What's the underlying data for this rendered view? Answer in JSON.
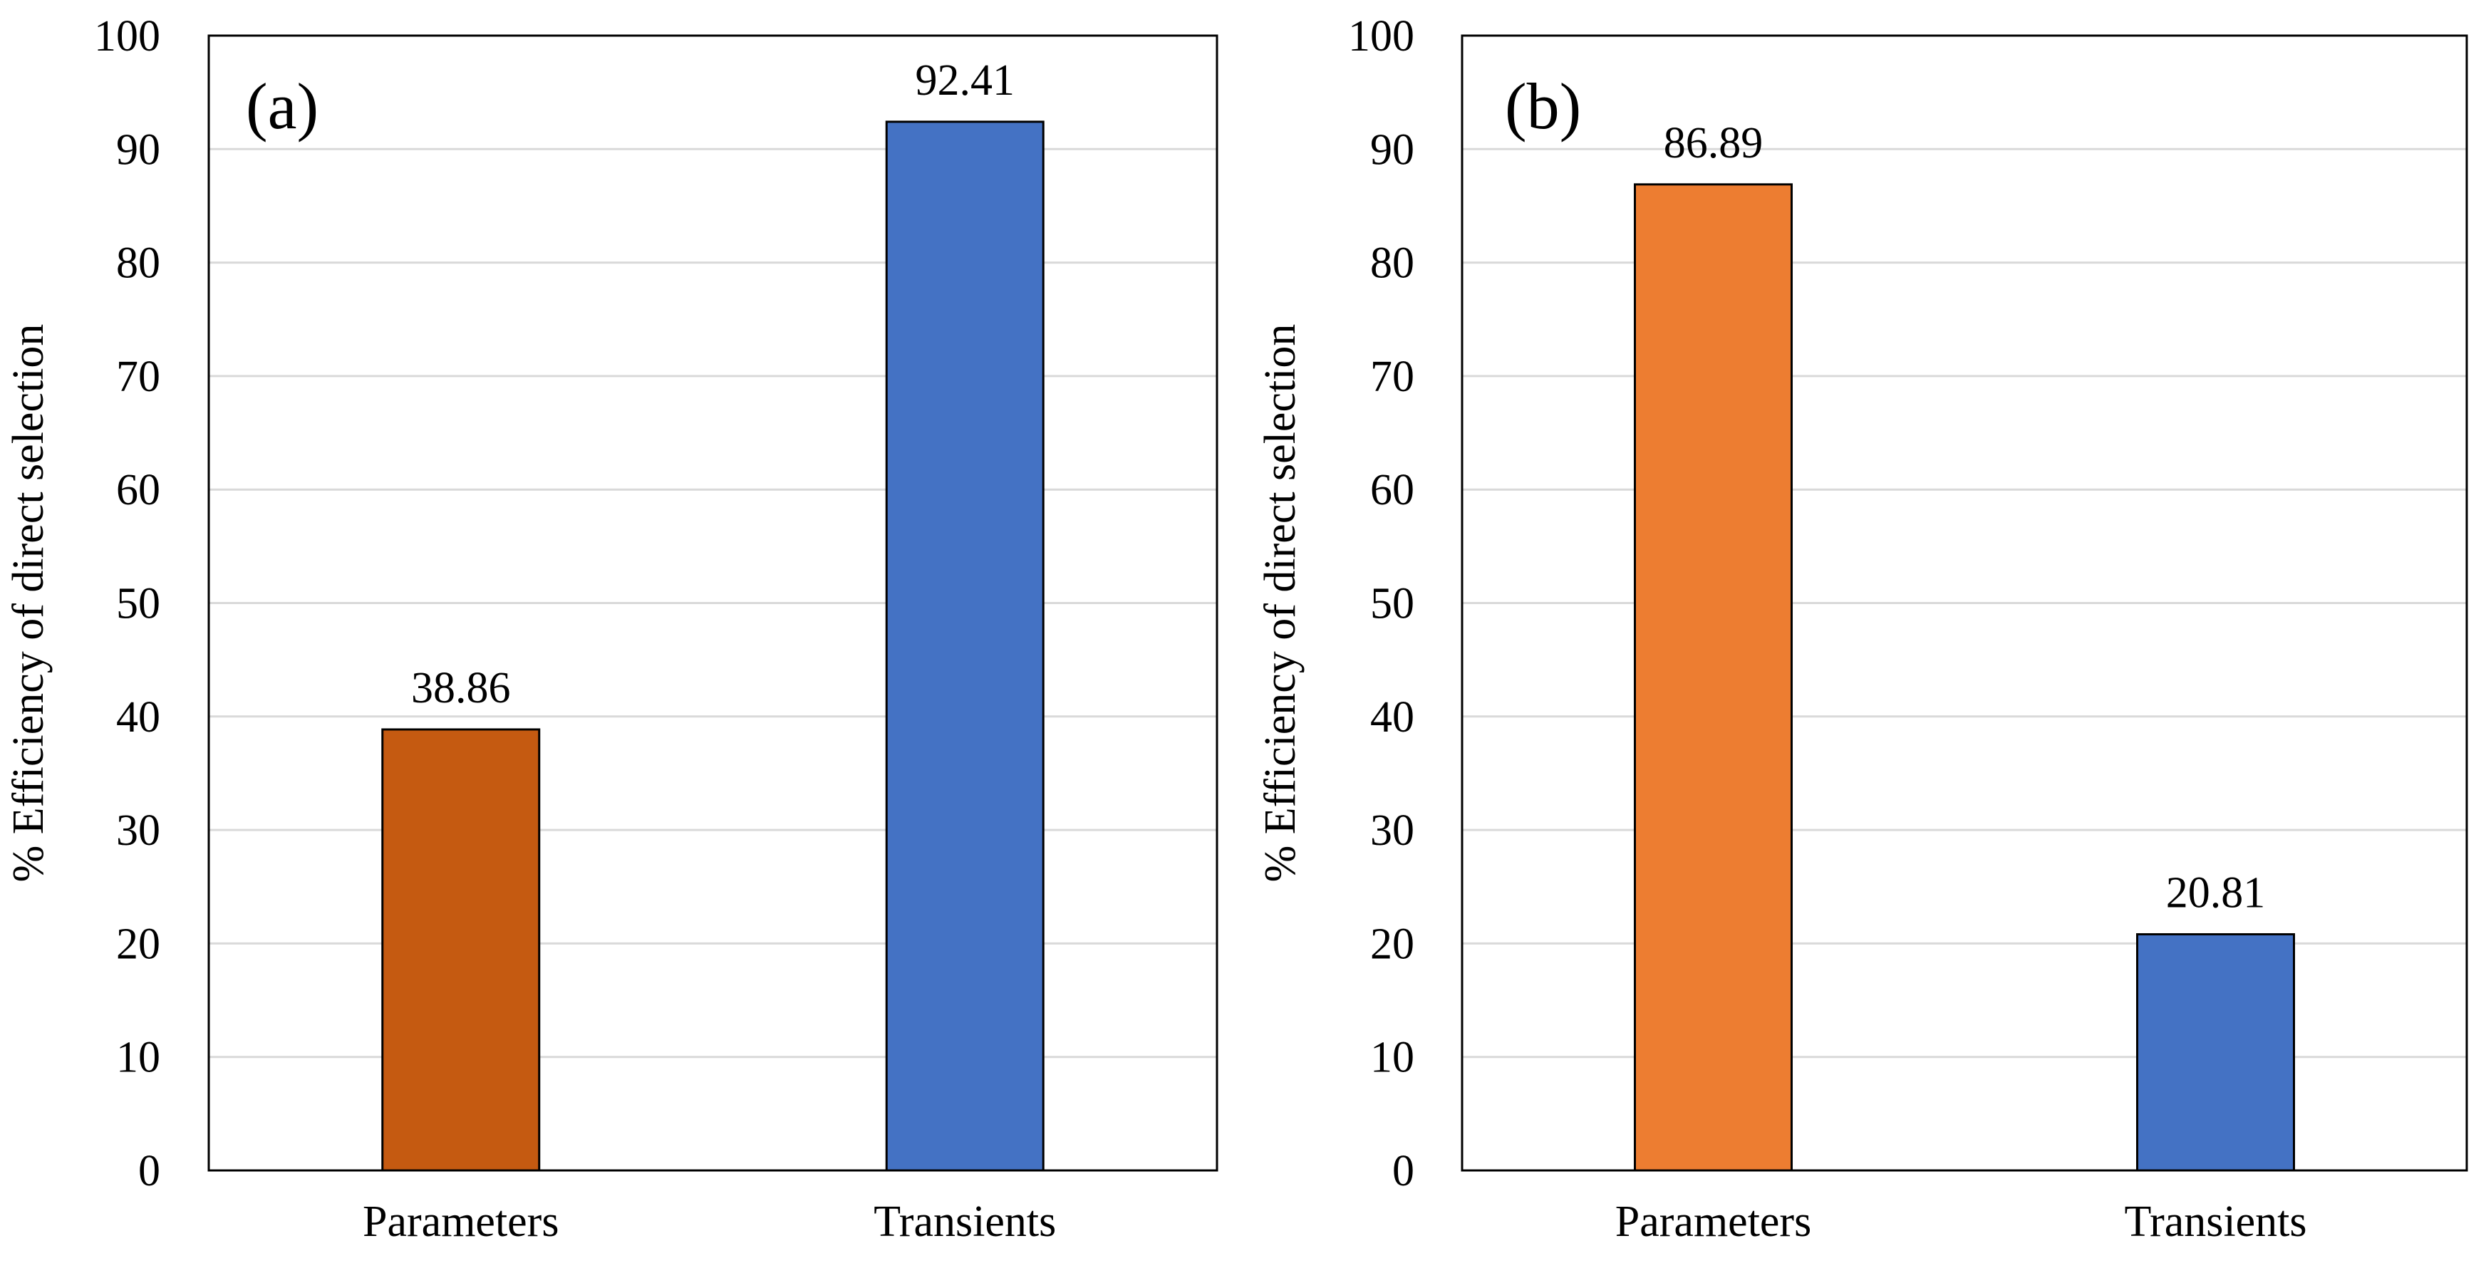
{
  "chart_data": [
    {
      "type": "bar",
      "panel_label": "(a)",
      "categories": [
        "Parameters",
        "Transients"
      ],
      "values": [
        38.86,
        92.41
      ],
      "value_labels": [
        "38.86",
        "92.41"
      ],
      "bar_colors": [
        "#C55A11",
        "#4472C4"
      ],
      "title": "",
      "xlabel": "",
      "ylabel": "% Efficiency of direct selection",
      "ylim": [
        0,
        100
      ],
      "yticks": [
        0,
        10,
        20,
        30,
        40,
        50,
        60,
        70,
        80,
        90,
        100
      ],
      "ytick_labels": [
        "0",
        "10",
        "20",
        "30",
        "40",
        "50",
        "60",
        "70",
        "80",
        "90",
        "100"
      ],
      "grid": true,
      "legend": "none"
    },
    {
      "type": "bar",
      "panel_label": "(b)",
      "categories": [
        "Parameters",
        "Transients"
      ],
      "values": [
        86.89,
        20.81
      ],
      "value_labels": [
        "86.89",
        "20.81"
      ],
      "bar_colors": [
        "#ED7D31",
        "#4472C4"
      ],
      "title": "",
      "xlabel": "",
      "ylabel": "% Efficiency of direct selection",
      "ylim": [
        0,
        100
      ],
      "yticks": [
        0,
        10,
        20,
        30,
        40,
        50,
        60,
        70,
        80,
        90,
        100
      ],
      "ytick_labels": [
        "0",
        "10",
        "20",
        "30",
        "40",
        "50",
        "60",
        "70",
        "80",
        "90",
        "100"
      ],
      "grid": true,
      "legend": "none"
    }
  ]
}
